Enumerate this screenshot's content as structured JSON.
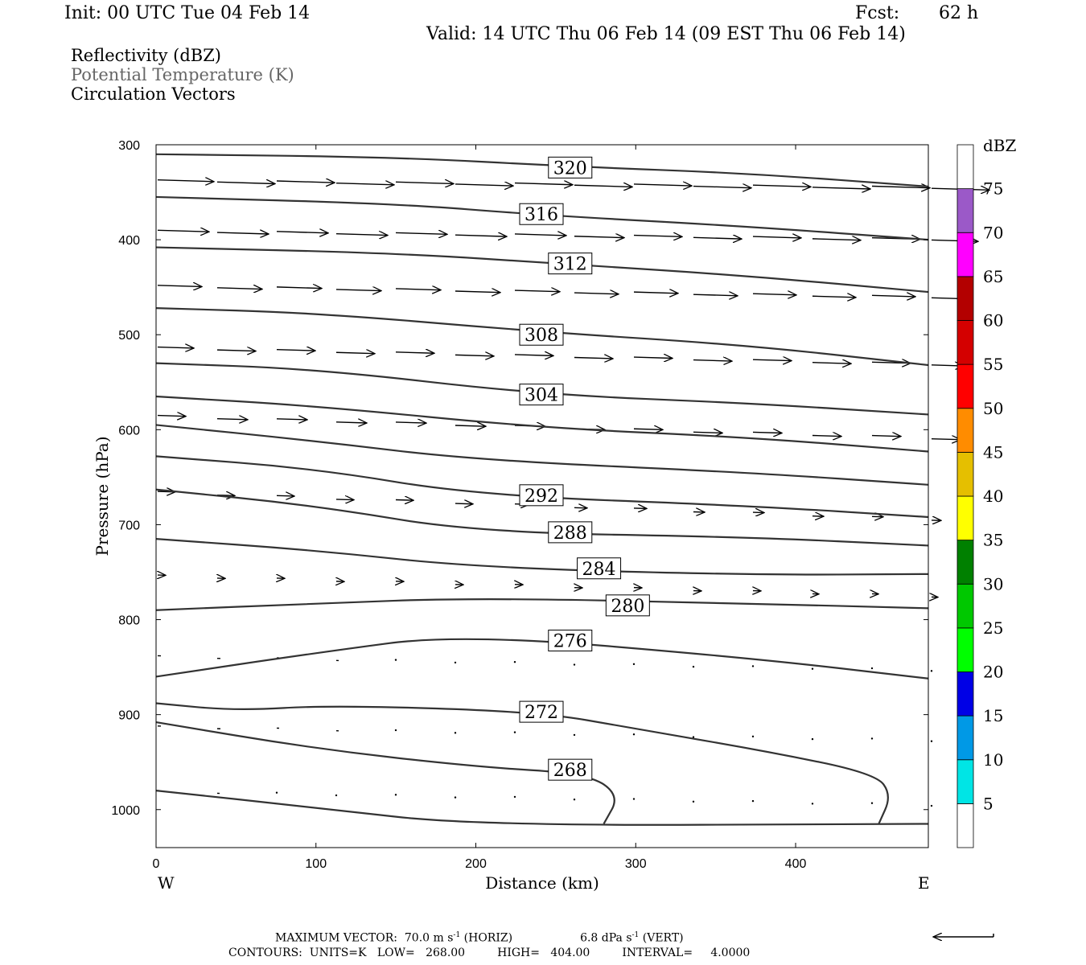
{
  "header": {
    "init": "Init: 00 UTC Tue 04 Feb 14",
    "fcst_label": "Fcst:",
    "fcst_value": "62 h",
    "valid": "Valid: 14 UTC Thu 06 Feb 14 (09 EST Thu 06 Feb 14)"
  },
  "fields": {
    "reflectivity": "Reflectivity (dBZ)",
    "theta": "Potential Temperature (K)",
    "vectors": "Circulation Vectors"
  },
  "footer": {
    "max_vector_prefix": "MAXIMUM VECTOR:  70.0 m s",
    "horiz_suffix": " (HORIZ)",
    "vert_prefix": "6.8 dPa s",
    "vert_suffix": " (VERT)",
    "exp": "-1",
    "contours": "CONTOURS:  UNITS=K   LOW=   268.00         HIGH=   404.00         INTERVAL=     4.0000"
  },
  "chart_data": {
    "type": "line",
    "xlabel": "Distance (km)",
    "ylabel": "Pressure (hPa)",
    "x_left_label": "W",
    "x_right_label": "E",
    "xlim": [
      0,
      483
    ],
    "ylim": [
      300,
      1040
    ],
    "xticks": [
      0,
      100,
      200,
      300,
      400
    ],
    "yticks": [
      300,
      400,
      500,
      600,
      700,
      800,
      900,
      1000
    ],
    "colorbar": {
      "title": "dBZ",
      "levels": [
        5,
        10,
        15,
        20,
        25,
        30,
        35,
        40,
        45,
        50,
        55,
        60,
        65,
        70,
        75
      ],
      "colors": [
        "#ffffff",
        "#00e5e5",
        "#0099e6",
        "#0000e6",
        "#00ff00",
        "#00c800",
        "#008000",
        "#ffff00",
        "#e5bf00",
        "#ff8c00",
        "#ff0000",
        "#d40000",
        "#b30000",
        "#ff00ff",
        "#9b59c8",
        "#ffffff"
      ]
    },
    "isentropes": [
      {
        "label": "320",
        "label_at": [
          259,
          324
        ],
        "points": [
          [
            0,
            310
          ],
          [
            150,
            313
          ],
          [
            260,
            323
          ],
          [
            370,
            330
          ],
          [
            483,
            344
          ]
        ]
      },
      {
        "label": "316",
        "label_at": [
          241,
          373
        ],
        "points": [
          [
            0,
            355
          ],
          [
            150,
            362
          ],
          [
            240,
            374
          ],
          [
            370,
            386
          ],
          [
            483,
            400
          ]
        ]
      },
      {
        "label": "312",
        "label_at": [
          259,
          425
        ],
        "points": [
          [
            0,
            408
          ],
          [
            150,
            414
          ],
          [
            260,
            426
          ],
          [
            370,
            438
          ],
          [
            483,
            455
          ]
        ]
      },
      {
        "label": "308",
        "label_at": [
          241,
          500
        ],
        "points": [
          [
            0,
            472
          ],
          [
            100,
            477
          ],
          [
            240,
            497
          ],
          [
            370,
            511
          ],
          [
            483,
            532
          ]
        ]
      },
      {
        "label": "304",
        "label_at": [
          241,
          563
        ],
        "points": [
          [
            0,
            530
          ],
          [
            100,
            536
          ],
          [
            240,
            563
          ],
          [
            370,
            572
          ],
          [
            483,
            584
          ]
        ]
      },
      {
        "label": "",
        "label_at": null,
        "points": [
          [
            0,
            565
          ],
          [
            100,
            575
          ],
          [
            240,
            598
          ],
          [
            370,
            608
          ],
          [
            483,
            623
          ]
        ]
      },
      {
        "label": "",
        "label_at": null,
        "points": [
          [
            0,
            595
          ],
          [
            100,
            612
          ],
          [
            200,
            632
          ],
          [
            370,
            645
          ],
          [
            483,
            658
          ]
        ]
      },
      {
        "label": "292",
        "label_at": [
          241,
          669
        ],
        "points": [
          [
            0,
            628
          ],
          [
            100,
            641
          ],
          [
            200,
            669
          ],
          [
            370,
            680
          ],
          [
            483,
            692
          ]
        ]
      },
      {
        "label": "288",
        "label_at": [
          259,
          708
        ],
        "points": [
          [
            0,
            663
          ],
          [
            100,
            680
          ],
          [
            200,
            708
          ],
          [
            370,
            713
          ],
          [
            483,
            722
          ]
        ]
      },
      {
        "label": "284",
        "label_at": [
          277,
          746
        ],
        "points": [
          [
            0,
            715
          ],
          [
            100,
            727
          ],
          [
            200,
            745
          ],
          [
            370,
            753
          ],
          [
            483,
            752
          ]
        ]
      },
      {
        "label": "280",
        "label_at": [
          295,
          785
        ],
        "points": [
          [
            0,
            790
          ],
          [
            100,
            783
          ],
          [
            200,
            777
          ],
          [
            370,
            783
          ],
          [
            483,
            788
          ]
        ]
      },
      {
        "label": "276",
        "label_at": [
          259,
          822
        ],
        "points": [
          [
            0,
            860
          ],
          [
            100,
            835
          ],
          [
            190,
            815
          ],
          [
            370,
            840
          ],
          [
            483,
            862
          ]
        ]
      },
      {
        "label": "272",
        "label_at": [
          241,
          897
        ],
        "points": [
          [
            0,
            888
          ],
          [
            50,
            896
          ],
          [
            110,
            890
          ],
          [
            240,
            897
          ],
          [
            300,
            915
          ],
          [
            380,
            938
          ],
          [
            450,
            962
          ],
          [
            460,
            985
          ],
          [
            452,
            1015
          ]
        ]
      },
      {
        "label": "268",
        "label_at": [
          259,
          958
        ],
        "points": [
          [
            0,
            908
          ],
          [
            100,
            936
          ],
          [
            200,
            955
          ],
          [
            270,
            962
          ],
          [
            290,
            985
          ],
          [
            280,
            1015
          ]
        ]
      },
      {
        "label": "",
        "label_at": null,
        "points": [
          [
            0,
            980
          ],
          [
            100,
            998
          ],
          [
            200,
            1017
          ],
          [
            483,
            1015
          ]
        ]
      }
    ],
    "vector_scale_max": "70.0",
    "vector_scale_vert": "6.8"
  }
}
